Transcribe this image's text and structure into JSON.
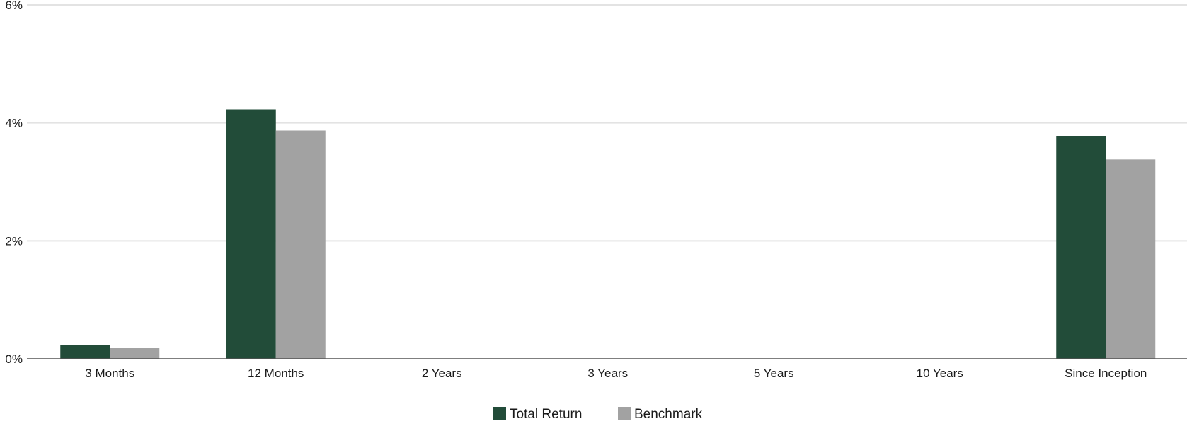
{
  "chart_data": {
    "type": "bar",
    "title": "",
    "xlabel": "",
    "ylabel": "",
    "categories": [
      "3 Months",
      "12 Months",
      "2 Years",
      "3 Years",
      "5 Years",
      "10 Years",
      "Since Inception"
    ],
    "series": [
      {
        "name": "Total Return",
        "color": "#224c39",
        "values": [
          0.24,
          4.23,
          null,
          null,
          null,
          null,
          3.78
        ]
      },
      {
        "name": "Benchmark",
        "color": "#a2a2a2",
        "values": [
          0.18,
          3.87,
          null,
          null,
          null,
          null,
          3.38
        ]
      }
    ],
    "ylim": [
      0,
      6
    ],
    "yticks": [
      {
        "value": 0,
        "label": "0%"
      },
      {
        "value": 2,
        "label": "2%"
      },
      {
        "value": 4,
        "label": "4%"
      },
      {
        "value": 6,
        "label": "6%"
      }
    ],
    "grid": true,
    "legend_position": "bottom-center"
  }
}
